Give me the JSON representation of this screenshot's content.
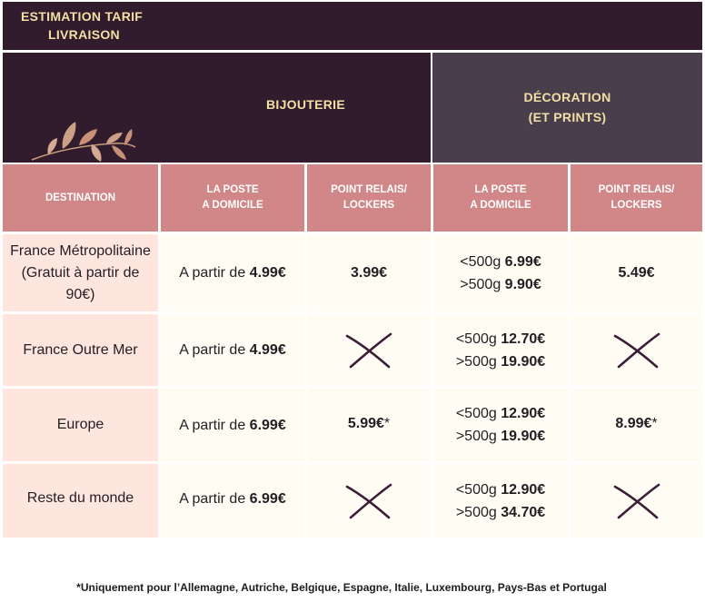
{
  "title": {
    "line1": "ESTIMATION TARIF",
    "line2": "LIVRAISON"
  },
  "groups": {
    "bijouterie": "BIJOUTERIE",
    "decoration": {
      "line1": "DÉCORATION",
      "line2": "(ET PRINTS)"
    }
  },
  "columns": {
    "destination": "DESTINATION",
    "poste": {
      "line1": "LA POSTE",
      "line2": "A DOMICILE"
    },
    "relais": {
      "line1": "POINT RELAIS/",
      "line2": "LOCKERS"
    }
  },
  "prefix": "A partir de",
  "rows": [
    {
      "destination": {
        "line1": "France Métropolitaine",
        "line2": "(Gratuit à partir de",
        "line3": "90€)"
      },
      "bijou_poste": "4.99€",
      "bijou_relais": "3.99€",
      "deco_poste": [
        {
          "label": "<500g",
          "price": "6.99€"
        },
        {
          "label": ">500g",
          "price": "9.90€"
        }
      ],
      "deco_relais": "5.49€"
    },
    {
      "destination": {
        "line1": "France Outre Mer"
      },
      "bijou_poste": "4.99€",
      "bijou_relais": "cross-icon",
      "deco_poste": [
        {
          "label": "<500g",
          "price": "12.70€"
        },
        {
          "label": ">500g",
          "price": "19.90€"
        }
      ],
      "deco_relais": "cross-icon"
    },
    {
      "destination": {
        "line1": "Europe"
      },
      "bijou_poste": "6.99€",
      "bijou_relais": "5.99€",
      "bijou_relais_note": "*",
      "deco_poste": [
        {
          "label": "<500g",
          "price": "12.90€"
        },
        {
          "label": ">500g",
          "price": "19.90€"
        }
      ],
      "deco_relais": "8.99€",
      "deco_relais_note": "*"
    },
    {
      "destination": {
        "line1": "Reste du monde"
      },
      "bijou_poste": "6.99€",
      "bijou_relais": "cross-icon",
      "deco_poste": [
        {
          "label": "<500g",
          "price": "12.90€"
        },
        {
          "label": ">500g",
          "price": "34.70€"
        }
      ],
      "deco_relais": "cross-icon"
    }
  ],
  "footnote": "*Uniquement pour l’Allemagne, Autriche, Belgique, Espagne, Italie, Luxembourg, Pays-Bas et Portugal",
  "decor": "leaf-branch-icon",
  "colors": {
    "dark": "#301c2c",
    "slate": "#493e4b",
    "pink": "#d18688",
    "blush": "#fee6de",
    "cream": "#fffcf3",
    "gold": "#f4dfa5"
  }
}
